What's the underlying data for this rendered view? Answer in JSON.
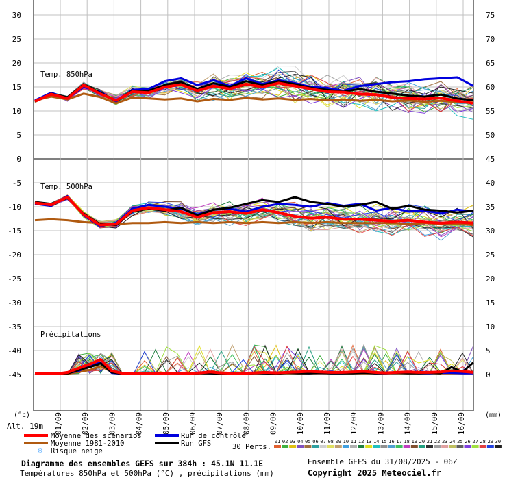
{
  "chart_data": {
    "type": "line",
    "x_tick_labels": [
      "01/09",
      "02/09",
      "03/09",
      "04/09",
      "05/09",
      "06/09",
      "07/09",
      "08/09",
      "09/09",
      "10/09",
      "11/09",
      "12/09",
      "13/09",
      "14/09",
      "15/09",
      "16/09"
    ],
    "left_axis_ticks": [
      "30",
      "25",
      "20",
      "15",
      "10",
      "5",
      "0",
      "-5",
      "-10",
      "-15",
      "-20",
      "-25",
      "-30",
      "-35",
      "-40",
      "-45"
    ],
    "right_axis_ticks": [
      "75",
      "70",
      "65",
      "60",
      "55",
      "50",
      "45",
      "40",
      "35",
      "30",
      "25",
      "20",
      "15",
      "10",
      "5",
      "0"
    ],
    "left_unit": "(°c)",
    "right_unit": "(mm)",
    "altitude_label": "Alt. 19m",
    "panels": [
      {
        "title": "Temp. 850hPa",
        "series": [
          {
            "name": "Moyenne des scénarios",
            "color": "#ff0000",
            "values": [
              12.0,
              13.5,
              12.6,
              15.4,
              13.6,
              12.2,
              14.0,
              13.8,
              15.0,
              15.5,
              14.2,
              15.2,
              14.6,
              15.6,
              15.0,
              15.8,
              15.2,
              14.6,
              14.0,
              13.9,
              13.5,
              13.4,
              12.8,
              12.6,
              12.5,
              12.7,
              12.1,
              11.6
            ]
          },
          {
            "name": "Moyenne 1981-2010",
            "color": "#b05a10",
            "values": [
              12.2,
              13.0,
              12.4,
              13.6,
              12.9,
              11.6,
              12.8,
              12.6,
              12.4,
              12.6,
              12.0,
              12.5,
              12.3,
              12.7,
              12.4,
              12.6,
              12.3,
              12.5,
              12.2,
              12.4,
              12.1,
              12.3,
              12.0,
              12.2,
              11.9,
              12.1,
              11.8,
              11.7
            ]
          },
          {
            "name": "Run de contrôle",
            "color": "#0000dd",
            "values": [
              12.2,
              13.8,
              12.6,
              15.0,
              14.0,
              12.0,
              14.4,
              14.6,
              16.2,
              16.8,
              15.4,
              16.4,
              15.2,
              16.8,
              15.6,
              16.4,
              15.8,
              15.0,
              14.8,
              14.2,
              15.2,
              15.6,
              16.0,
              16.2,
              16.6,
              16.8,
              17.0,
              15.2
            ]
          },
          {
            "name": "Run GFS",
            "color": "#000000",
            "values": [
              12.0,
              13.6,
              12.8,
              15.6,
              13.8,
              12.2,
              14.2,
              14.2,
              15.4,
              16.0,
              14.6,
              15.8,
              15.0,
              16.2,
              15.4,
              16.2,
              15.6,
              14.8,
              14.4,
              14.0,
              14.6,
              14.0,
              13.6,
              13.2,
              13.0,
              13.4,
              12.6,
              12.2
            ]
          }
        ]
      },
      {
        "title": "Temp. 500hPa",
        "series": [
          {
            "name": "Moyenne des scénarios",
            "color": "#ff0000",
            "values": [
              -9.2,
              -9.6,
              -8.0,
              -11.6,
              -13.8,
              -13.6,
              -10.8,
              -10.2,
              -10.6,
              -11.0,
              -12.2,
              -11.2,
              -11.0,
              -11.4,
              -10.6,
              -11.2,
              -12.0,
              -12.4,
              -12.2,
              -12.6,
              -12.6,
              -12.8,
              -13.0,
              -12.8,
              -13.2,
              -13.4,
              -13.2,
              -13.4
            ]
          },
          {
            "name": "Moyenne 1981-2010",
            "color": "#b05a10",
            "values": [
              -12.8,
              -12.6,
              -12.8,
              -13.2,
              -13.4,
              -13.6,
              -13.4,
              -13.4,
              -13.2,
              -13.4,
              -13.2,
              -13.4,
              -13.2,
              -13.4,
              -13.2,
              -13.4,
              -13.2,
              -13.4,
              -13.2,
              -13.4,
              -13.4,
              -13.4,
              -13.4,
              -13.6,
              -13.4,
              -13.6,
              -13.6,
              -13.8
            ]
          },
          {
            "name": "Run de contrôle",
            "color": "#0000dd",
            "values": [
              -9.4,
              -9.8,
              -7.8,
              -11.8,
              -14.0,
              -13.4,
              -10.4,
              -9.6,
              -10.0,
              -10.4,
              -11.6,
              -10.6,
              -10.4,
              -11.0,
              -10.0,
              -9.4,
              -9.6,
              -10.0,
              -9.2,
              -9.8,
              -9.4,
              -10.8,
              -10.2,
              -11.0,
              -10.8,
              -11.4,
              -10.6,
              -11.0
            ]
          },
          {
            "name": "Run GFS",
            "color": "#000000",
            "values": [
              -9.0,
              -9.4,
              -8.2,
              -11.4,
              -13.6,
              -13.8,
              -11.0,
              -10.4,
              -10.8,
              -10.2,
              -11.8,
              -10.6,
              -10.2,
              -9.4,
              -8.6,
              -9.0,
              -8.0,
              -9.0,
              -9.4,
              -10.0,
              -9.6,
              -9.0,
              -10.4,
              -9.8,
              -10.6,
              -10.8,
              -11.2,
              -10.8
            ]
          }
        ]
      },
      {
        "title": "Précipitations",
        "series": [
          {
            "name": "Moyenne des scénarios",
            "color": "#ff0000",
            "values": [
              0,
              0,
              0,
              0.3,
              1.2,
              2.0,
              3.0,
              0.6,
              0.1,
              0,
              0,
              0,
              0,
              0,
              0.1,
              0.2,
              0.4,
              0.2,
              0.1,
              0.1,
              0.2,
              0.3,
              0.2,
              0.3,
              0.4,
              0.5,
              0.4,
              0.3,
              0.3,
              0.4,
              0.5,
              0.3,
              0.2,
              0.3,
              0.4,
              0.3,
              0.3,
              0.4,
              0.6,
              0.5,
              0.3
            ]
          },
          {
            "name": "Moyenne 1981-2010",
            "color": "#b05a10",
            "values": [
              0,
              0,
              0,
              0,
              0.4,
              0.8,
              1.6,
              0.4,
              0,
              0,
              0,
              0,
              0,
              0,
              0,
              0.1,
              0.1,
              0.1,
              0.1,
              0.1,
              0.1,
              0.1,
              0.1,
              0.1,
              0.1,
              0.1,
              0.1,
              0.1,
              0.1,
              0.1,
              0.1,
              0.1,
              0.1,
              0.1,
              0.1,
              0.1,
              0.1,
              0.1,
              0.1,
              0.1,
              0.1
            ]
          },
          {
            "name": "Run de contrôle",
            "color": "#0000dd",
            "values": [
              0,
              0,
              0,
              0.2,
              0.6,
              1.8,
              2.4,
              0.2,
              0,
              0,
              0.1,
              0.1,
              0,
              0,
              0.1,
              0.2,
              0.1,
              0.1,
              0,
              0.1,
              0.2,
              0.1,
              0.1,
              0.3,
              0.2,
              0.1,
              0.2,
              0.1,
              0.1,
              0.2,
              0.3,
              0.1,
              0.1,
              0.2,
              0.3,
              0.1,
              0.1,
              0.2,
              0.2,
              0.1,
              0.1
            ]
          },
          {
            "name": "Run GFS",
            "color": "#000000",
            "values": [
              0,
              0,
              0,
              0.1,
              0.8,
              1.4,
              2.2,
              0.3,
              0,
              0,
              0,
              0,
              0,
              0,
              0,
              0.1,
              0.1,
              0,
              0,
              0,
              0.1,
              0.1,
              0,
              0.2,
              0.1,
              0.1,
              0.2,
              0.1,
              0.1,
              0.1,
              0.2,
              0.1,
              0.1,
              0.2,
              0.1,
              0.1,
              0.2,
              0.1,
              1.4,
              0.4,
              2.4
            ]
          }
        ]
      }
    ],
    "ensemble_color_scale": [
      "#e06030",
      "#40b040",
      "#e0c010",
      "#8050c0",
      "#a07040",
      "#30a0a0",
      "#d0d0d0",
      "#e0e060",
      "#c0a070",
      "#40a0e0",
      "#b0b0b0",
      "#208040",
      "#e0e020",
      "#20c0c0",
      "#909090",
      "#50a0d0",
      "#40c060",
      "#c040c0",
      "#805030",
      "#20a080",
      "#303030",
      "#a0a0a0",
      "#e0a0a0",
      "#c0c060",
      "#606060",
      "#8040e0",
      "#a0e040",
      "#e04040",
      "#2040e0",
      "#202020"
    ]
  },
  "legend": {
    "items": [
      {
        "label": "Moyenne des scénarios",
        "color": "#ff0000"
      },
      {
        "label": "Run de contrôle",
        "color": "#0000dd"
      },
      {
        "label": "Moyenne 1981-2010",
        "color": "#b05a10"
      },
      {
        "label": "Run GFS",
        "color": "#000000"
      }
    ],
    "snow_label": "Risque neige",
    "perts_label": "30 Perts.",
    "pert_numbers": [
      "01",
      "02",
      "03",
      "04",
      "05",
      "06",
      "07",
      "08",
      "09",
      "10",
      "11",
      "12",
      "13",
      "14",
      "15",
      "16",
      "17",
      "18",
      "19",
      "20",
      "21",
      "22",
      "23",
      "24",
      "25",
      "26",
      "27",
      "28",
      "29",
      "30"
    ]
  },
  "footer": {
    "title": "Diagramme des ensembles GEFS sur 384h : 45.1N 11.1E",
    "subtitle": "Températures 850hPa et 500hPa (°C) , précipitations (mm)",
    "run_info": "Ensemble GEFS du 31/08/2025 - 06Z",
    "copyright": "Copyright 2025 Meteociel.fr"
  }
}
